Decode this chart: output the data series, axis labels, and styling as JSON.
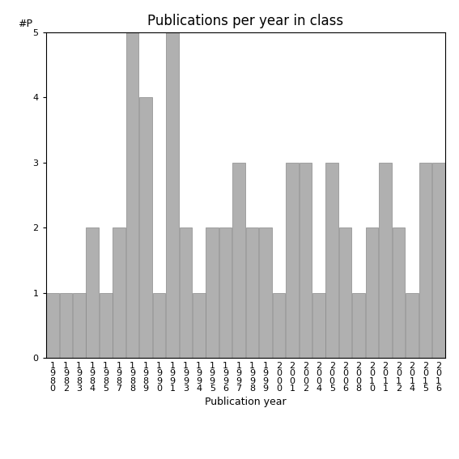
{
  "title": "Publications per year in class",
  "xlabel": "Publication year",
  "ylabel": "#P",
  "categories": [
    "1\n9\n8\n0",
    "1\n9\n8\n2",
    "1\n9\n8\n3",
    "1\n9\n8\n4",
    "1\n9\n8\n5",
    "1\n9\n8\n7",
    "1\n9\n8\n8",
    "1\n9\n8\n9",
    "1\n9\n9\n0",
    "1\n9\n9\n1",
    "1\n9\n9\n3",
    "1\n9\n9\n4",
    "1\n9\n9\n5",
    "1\n9\n9\n6",
    "1\n9\n9\n7",
    "1\n9\n9\n8",
    "1\n9\n9\n9",
    "2\n0\n0\n0",
    "2\n0\n0\n1",
    "2\n0\n0\n2",
    "2\n0\n0\n4",
    "2\n0\n0\n5",
    "2\n0\n0\n6",
    "2\n0\n0\n8",
    "2\n0\n1\n0",
    "2\n0\n1\n1",
    "2\n0\n1\n2",
    "2\n0\n1\n4",
    "2\n0\n1\n5",
    "2\n0\n1\n6"
  ],
  "values": [
    1,
    1,
    1,
    2,
    1,
    2,
    5,
    4,
    1,
    5,
    2,
    1,
    2,
    2,
    3,
    2,
    2,
    1,
    3,
    3,
    1,
    3,
    2,
    1,
    2,
    3,
    2,
    1,
    3,
    3
  ],
  "bar_color": "#b0b0b0",
  "bar_edge_color": "#888888",
  "ylim": [
    0,
    5
  ],
  "yticks": [
    0,
    1,
    2,
    3,
    4,
    5
  ],
  "bg_color": "#ffffff",
  "title_fontsize": 12,
  "label_fontsize": 9,
  "tick_fontsize": 8,
  "ylabel_fontsize": 9
}
